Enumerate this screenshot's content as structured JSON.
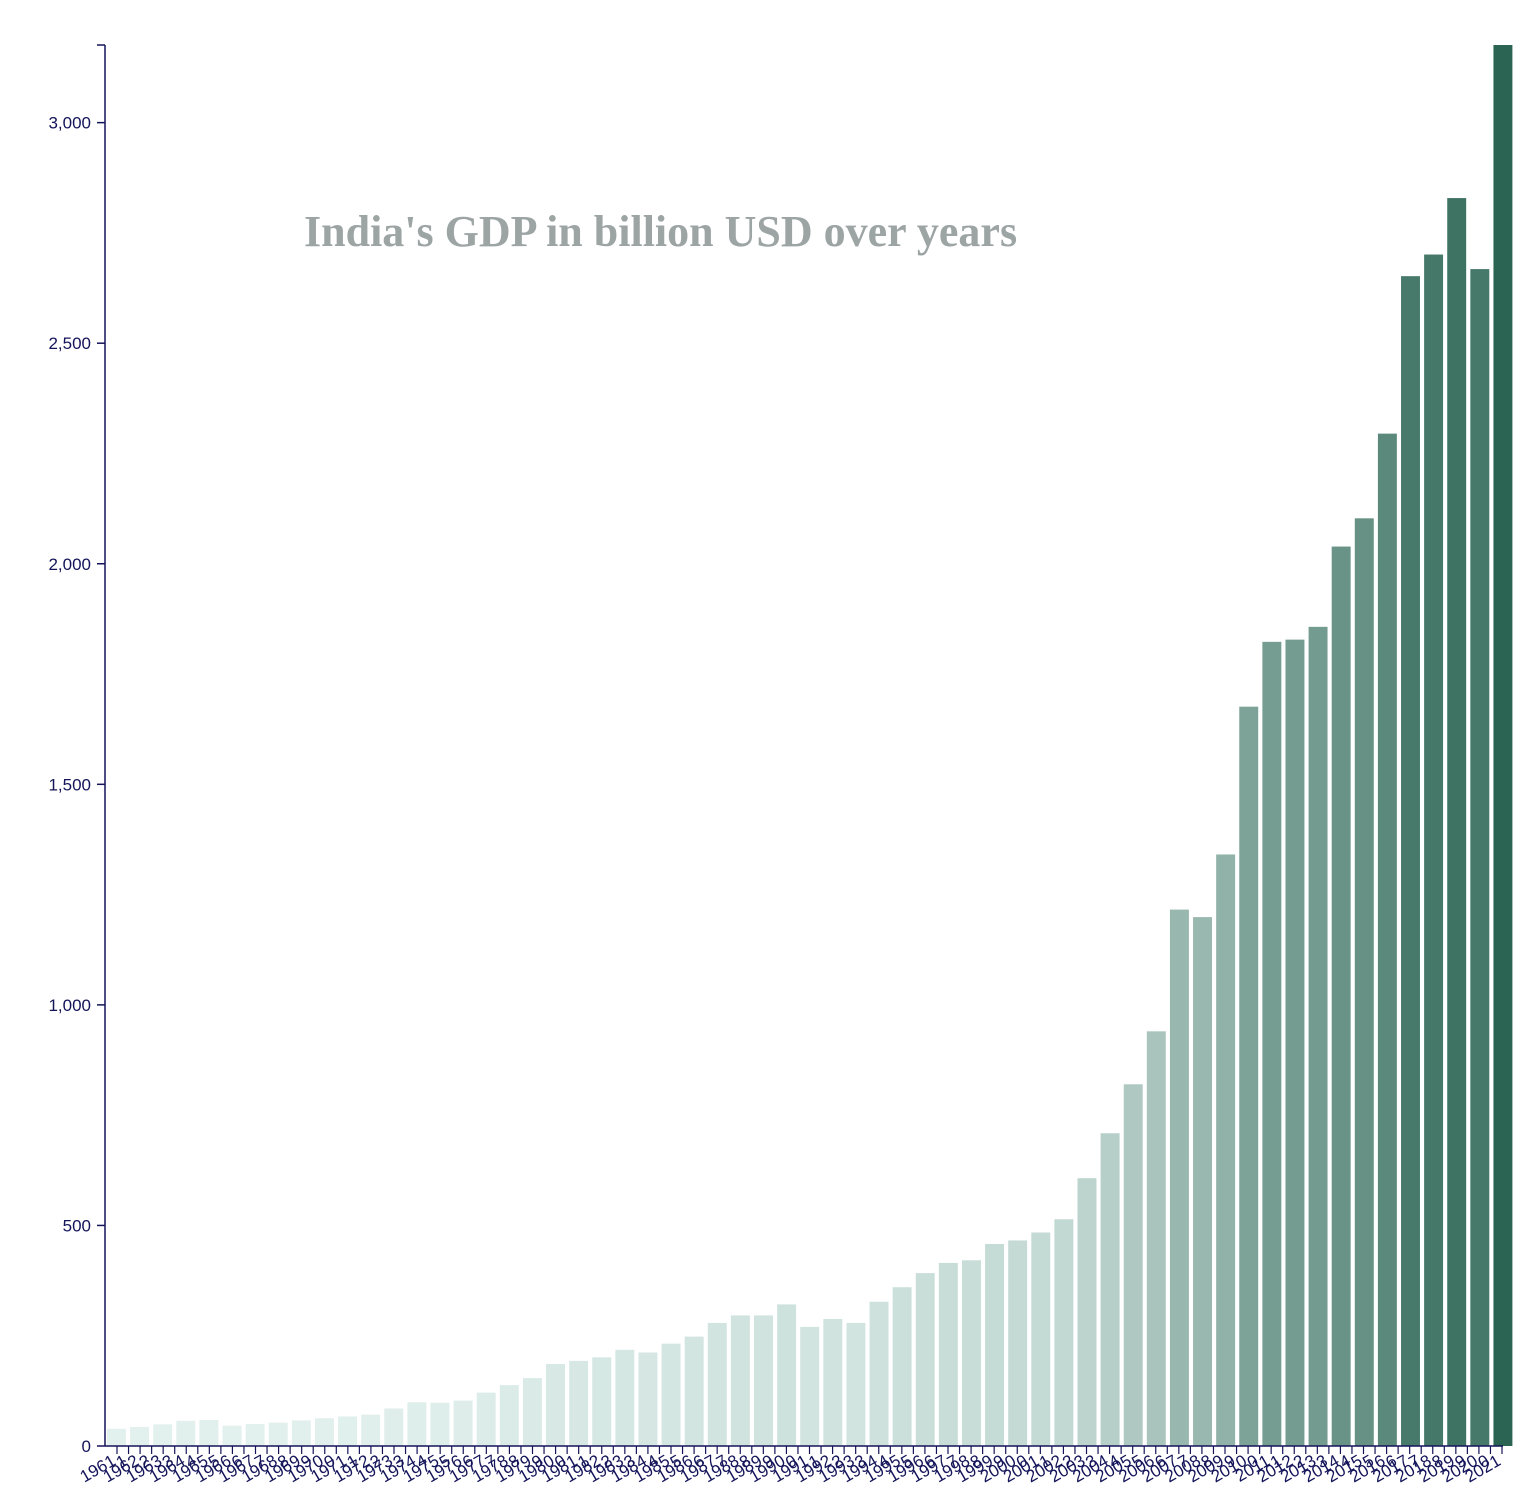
{
  "chart_data": {
    "type": "bar",
    "title": "India's GDP in billion USD over years",
    "xlabel": "",
    "ylabel": "",
    "ylim": [
      0,
      3176
    ],
    "yticks": [
      0,
      500,
      1000,
      1500,
      2000,
      2500,
      3000
    ],
    "ytick_labels": [
      "0",
      "500",
      "1,000",
      "1,500",
      "2,000",
      "2,500",
      "3,000"
    ],
    "grid": false,
    "legend": "none",
    "categories": [
      "1961",
      "1962",
      "1963",
      "1964",
      "1965",
      "1966",
      "1967",
      "1968",
      "1969",
      "1970",
      "1971",
      "1972",
      "1973",
      "1974",
      "1975",
      "1976",
      "1977",
      "1978",
      "1979",
      "1980",
      "1981",
      "1982",
      "1983",
      "1984",
      "1985",
      "1986",
      "1987",
      "1988",
      "1989",
      "1990",
      "1991",
      "1992",
      "1993",
      "1994",
      "1995",
      "1996",
      "1997",
      "1998",
      "1999",
      "2000",
      "2001",
      "2002",
      "2003",
      "2004",
      "2005",
      "2006",
      "2007",
      "2008",
      "2009",
      "2010",
      "2011",
      "2012",
      "2013",
      "2014",
      "2015",
      "2016",
      "2017",
      "2018",
      "2019",
      "2020",
      "2021"
    ],
    "tick_text": [
      "1961",
      "1",
      "1962",
      "2",
      "1963",
      "3",
      "1964",
      "4",
      "1965",
      "5",
      "1966",
      "6",
      "1967",
      "7",
      "1968",
      "8",
      "1969",
      "9",
      "1970",
      "0",
      "1971",
      "1",
      "1972",
      "2",
      "1973",
      "3",
      "1974",
      "4",
      "1975",
      "5",
      "1976",
      "6",
      "1977",
      "7",
      "1978",
      "8",
      "1979",
      "9",
      "1980",
      "0",
      "1981",
      "1",
      "1982",
      "2",
      "1983",
      "3",
      "1984",
      "4",
      "1985",
      "5",
      "1986",
      "6",
      "1987",
      "7",
      "1988",
      "8",
      "1989",
      "9",
      "1990",
      "0",
      "1991",
      "1",
      "1992",
      "2",
      "1993",
      "3",
      "1994",
      "4",
      "1995",
      "5",
      "1996",
      "6",
      "1997",
      "7",
      "1998",
      "8",
      "1999",
      "9",
      "2000",
      "0",
      "2001",
      "1",
      "2002",
      "2",
      "2003",
      "3",
      "2004",
      "4",
      "2005",
      "5",
      "2006",
      "6",
      "2007",
      "7",
      "2008",
      "8",
      "2009",
      "9",
      "2010",
      "0",
      "2011",
      "1",
      "2012",
      "2",
      "2013",
      "3",
      "2014",
      "4",
      "2015",
      "5",
      "2016",
      "6",
      "2017",
      "7",
      "2018",
      "8",
      "2019",
      "9",
      "2020",
      "0",
      "2021"
    ],
    "values": [
      39,
      43,
      49,
      57,
      59,
      46,
      50,
      53,
      58,
      63,
      67,
      71,
      85,
      99,
      98,
      103,
      121,
      138,
      154,
      186,
      193,
      201,
      218,
      212,
      232,
      248,
      279,
      296,
      296,
      321,
      270,
      288,
      279,
      327,
      360,
      392,
      415,
      421,
      458,
      466,
      484,
      514,
      607,
      709,
      820,
      940,
      1216,
      1199,
      1341,
      1676,
      1823,
      1828,
      1857,
      2039,
      2103,
      2295,
      2652,
      2701,
      2829,
      2668,
      3176
    ],
    "colors": {
      "light": "#e6f4f1",
      "dark": "#2c6453",
      "axis": "#14145a",
      "title": "#9ca5a4"
    }
  }
}
